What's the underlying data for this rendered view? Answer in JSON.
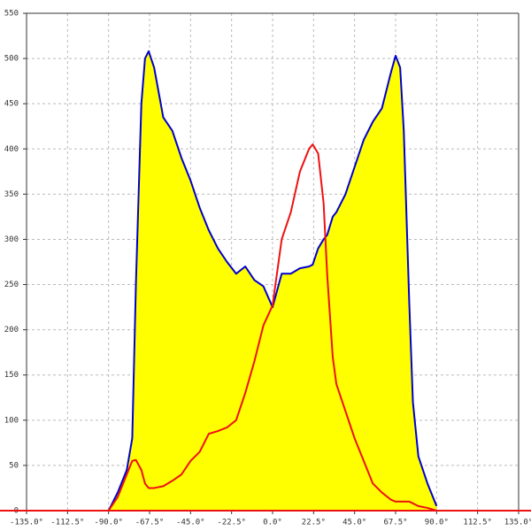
{
  "chart_data": {
    "type": "area",
    "grid": true,
    "x": [
      -90,
      -85,
      -80,
      -77,
      -75,
      -72,
      -70,
      -68,
      -65,
      -60,
      -55,
      -50,
      -45,
      -40,
      -35,
      -30,
      -25,
      -20,
      -15,
      -10,
      -5,
      0,
      5,
      10,
      15,
      20,
      22,
      25,
      28,
      30,
      33,
      35,
      40,
      45,
      50,
      55,
      60,
      65,
      67.5,
      70,
      72,
      75,
      77,
      80,
      85,
      90
    ],
    "series": [
      {
        "color": "#0000cc",
        "fill": "#ffff00",
        "values": [
          0,
          20,
          45,
          80,
          250,
          450,
          500,
          508,
          490,
          435,
          420,
          390,
          365,
          335,
          310,
          290,
          275,
          262,
          270,
          255,
          248,
          225,
          262,
          262,
          268,
          270,
          272,
          290,
          300,
          305,
          325,
          330,
          350,
          380,
          410,
          430,
          445,
          485,
          503,
          490,
          420,
          230,
          120,
          60,
          30,
          5
        ]
      },
      {
        "color": "#ee1111",
        "values": [
          0,
          15,
          40,
          55,
          56,
          45,
          30,
          25,
          25,
          27,
          33,
          40,
          55,
          65,
          85,
          88,
          92,
          100,
          130,
          165,
          205,
          227,
          300,
          330,
          375,
          400,
          405,
          395,
          340,
          260,
          170,
          140,
          110,
          80,
          55,
          30,
          20,
          12,
          10,
          10,
          10,
          10,
          8,
          5,
          3,
          0
        ]
      }
    ],
    "xlim": [
      -135,
      135
    ],
    "xticks": [
      {
        "value": -135,
        "label": "-135.0°"
      },
      {
        "value": -112.5,
        "label": "-112.5°"
      },
      {
        "value": -90,
        "label": "-90.0°"
      },
      {
        "value": -67.5,
        "label": "-67.5°"
      },
      {
        "value": -45,
        "label": "-45.0°"
      },
      {
        "value": -22.5,
        "label": "-22.5°"
      },
      {
        "value": 0,
        "label": "0.0°"
      },
      {
        "value": 22.5,
        "label": "22.5°"
      },
      {
        "value": 45,
        "label": "45.0°"
      },
      {
        "value": 67.5,
        "label": "67.5°"
      },
      {
        "value": 90,
        "label": "90.0°"
      },
      {
        "value": 112.5,
        "label": "112.5°"
      },
      {
        "value": 135,
        "label": "135.0°"
      }
    ],
    "ylim": [
      0,
      550
    ],
    "yticks": [
      0,
      50,
      100,
      150,
      200,
      250,
      300,
      350,
      400,
      450,
      500,
      550
    ]
  }
}
